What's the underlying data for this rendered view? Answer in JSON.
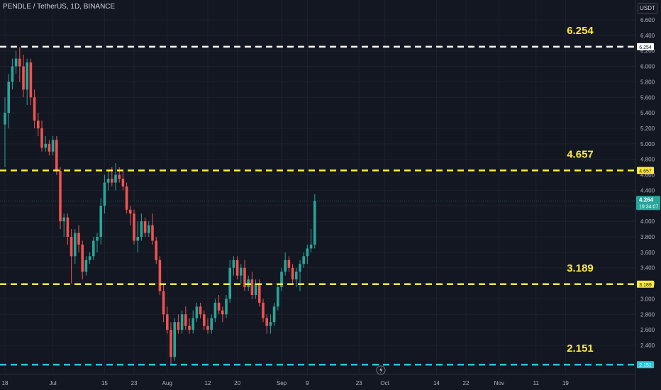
{
  "header": {
    "symbol_line": "PENDLE / TetherUS, 1D, BINANCE"
  },
  "price_axis": {
    "unit": "USDT",
    "current_price": "4.264",
    "countdown": "19:34:07"
  },
  "colors": {
    "background": "#131722",
    "up": "#26a69a",
    "down": "#ef5350",
    "white_level": "#ffffff",
    "yellow_level": "#ffeb3b",
    "cyan_level": "#26c6da"
  },
  "chart_data": {
    "type": "candlestick",
    "ylim": [
      2.2,
      6.7
    ],
    "yticks": [
      "2.400",
      "2.600",
      "2.800",
      "3.000",
      "3.200",
      "3.400",
      "3.600",
      "3.800",
      "4.000",
      "4.200",
      "4.400",
      "4.600",
      "4.800",
      "5.000",
      "5.200",
      "5.400",
      "5.600",
      "5.800",
      "6.000",
      "6.200",
      "6.400",
      "6.600"
    ],
    "xticks": [
      {
        "label": "18",
        "day": 0
      },
      {
        "label": "Jul",
        "day": 13
      },
      {
        "label": "15",
        "day": 27
      },
      {
        "label": "23",
        "day": 35
      },
      {
        "label": "Aug",
        "day": 44
      },
      {
        "label": "12",
        "day": 55
      },
      {
        "label": "20",
        "day": 63
      },
      {
        "label": "Sep",
        "day": 75
      },
      {
        "label": "9",
        "day": 82
      },
      {
        "label": "23",
        "day": 96
      },
      {
        "label": "Oct",
        "day": 103
      },
      {
        "label": "14",
        "day": 117
      },
      {
        "label": "22",
        "day": 125
      },
      {
        "label": "Nov",
        "day": 134
      },
      {
        "label": "11",
        "day": 144
      },
      {
        "label": "19",
        "day": 152
      }
    ],
    "levels": [
      {
        "price": 6.254,
        "label": "6.254",
        "color": "white_level"
      },
      {
        "price": 4.657,
        "label": "4.657",
        "color": "yellow_level"
      },
      {
        "price": 3.189,
        "label": "3.189",
        "color": "yellow_level"
      },
      {
        "price": 2.151,
        "label": "2.151",
        "color": "cyan_level"
      }
    ],
    "candles": [
      {
        "o": 5.25,
        "h": 5.6,
        "l": 4.7,
        "c": 5.4
      },
      {
        "o": 5.4,
        "h": 5.9,
        "l": 5.2,
        "c": 5.8
      },
      {
        "o": 5.8,
        "h": 6.1,
        "l": 5.7,
        "c": 6.0
      },
      {
        "o": 6.0,
        "h": 6.2,
        "l": 5.9,
        "c": 6.1
      },
      {
        "o": 6.1,
        "h": 6.25,
        "l": 5.8,
        "c": 6.0
      },
      {
        "o": 6.0,
        "h": 6.15,
        "l": 5.6,
        "c": 5.7
      },
      {
        "o": 5.7,
        "h": 6.1,
        "l": 5.5,
        "c": 6.05
      },
      {
        "o": 6.05,
        "h": 6.1,
        "l": 5.5,
        "c": 5.6
      },
      {
        "o": 5.6,
        "h": 5.7,
        "l": 5.2,
        "c": 5.3
      },
      {
        "o": 5.3,
        "h": 5.4,
        "l": 5.1,
        "c": 5.2
      },
      {
        "o": 5.2,
        "h": 5.3,
        "l": 4.9,
        "c": 4.95
      },
      {
        "o": 4.95,
        "h": 5.1,
        "l": 4.9,
        "c": 5.0
      },
      {
        "o": 5.0,
        "h": 5.05,
        "l": 4.85,
        "c": 4.9
      },
      {
        "o": 4.9,
        "h": 5.1,
        "l": 4.85,
        "c": 5.05
      },
      {
        "o": 5.05,
        "h": 5.1,
        "l": 4.6,
        "c": 4.65
      },
      {
        "o": 4.65,
        "h": 4.7,
        "l": 3.9,
        "c": 4.0
      },
      {
        "o": 4.0,
        "h": 4.1,
        "l": 3.8,
        "c": 4.05
      },
      {
        "o": 4.05,
        "h": 4.1,
        "l": 3.7,
        "c": 3.8
      },
      {
        "o": 3.8,
        "h": 3.9,
        "l": 3.2,
        "c": 3.55
      },
      {
        "o": 3.55,
        "h": 3.9,
        "l": 3.45,
        "c": 3.85
      },
      {
        "o": 3.85,
        "h": 3.95,
        "l": 3.6,
        "c": 3.7
      },
      {
        "o": 3.7,
        "h": 3.75,
        "l": 3.25,
        "c": 3.35
      },
      {
        "o": 3.35,
        "h": 3.55,
        "l": 3.3,
        "c": 3.5
      },
      {
        "o": 3.5,
        "h": 3.6,
        "l": 3.45,
        "c": 3.55
      },
      {
        "o": 3.55,
        "h": 3.8,
        "l": 3.5,
        "c": 3.75
      },
      {
        "o": 3.75,
        "h": 3.85,
        "l": 3.6,
        "c": 3.8
      },
      {
        "o": 3.8,
        "h": 4.3,
        "l": 3.7,
        "c": 4.2
      },
      {
        "o": 4.2,
        "h": 4.6,
        "l": 4.1,
        "c": 4.5
      },
      {
        "o": 4.5,
        "h": 4.65,
        "l": 4.4,
        "c": 4.55
      },
      {
        "o": 4.55,
        "h": 4.7,
        "l": 4.45,
        "c": 4.5
      },
      {
        "o": 4.5,
        "h": 4.75,
        "l": 4.4,
        "c": 4.6
      },
      {
        "o": 4.6,
        "h": 4.7,
        "l": 4.5,
        "c": 4.55
      },
      {
        "o": 4.55,
        "h": 4.65,
        "l": 4.4,
        "c": 4.45
      },
      {
        "o": 4.45,
        "h": 4.5,
        "l": 4.1,
        "c": 4.15
      },
      {
        "o": 4.15,
        "h": 4.2,
        "l": 3.95,
        "c": 4.1
      },
      {
        "o": 4.1,
        "h": 4.15,
        "l": 3.7,
        "c": 3.75
      },
      {
        "o": 3.75,
        "h": 4.0,
        "l": 3.6,
        "c": 3.8
      },
      {
        "o": 3.8,
        "h": 4.1,
        "l": 3.75,
        "c": 4.0
      },
      {
        "o": 4.0,
        "h": 4.05,
        "l": 3.8,
        "c": 3.85
      },
      {
        "o": 3.85,
        "h": 4.0,
        "l": 3.8,
        "c": 3.95
      },
      {
        "o": 3.95,
        "h": 4.1,
        "l": 3.7,
        "c": 3.75
      },
      {
        "o": 3.75,
        "h": 3.8,
        "l": 3.45,
        "c": 3.5
      },
      {
        "o": 3.5,
        "h": 3.55,
        "l": 3.05,
        "c": 3.1
      },
      {
        "o": 3.1,
        "h": 3.2,
        "l": 2.7,
        "c": 2.8
      },
      {
        "o": 2.8,
        "h": 2.9,
        "l": 2.55,
        "c": 2.6
      },
      {
        "o": 2.6,
        "h": 2.7,
        "l": 2.15,
        "c": 2.25
      },
      {
        "o": 2.25,
        "h": 2.75,
        "l": 2.2,
        "c": 2.7
      },
      {
        "o": 2.7,
        "h": 2.8,
        "l": 2.55,
        "c": 2.6
      },
      {
        "o": 2.6,
        "h": 2.85,
        "l": 2.55,
        "c": 2.8
      },
      {
        "o": 2.8,
        "h": 2.9,
        "l": 2.6,
        "c": 2.65
      },
      {
        "o": 2.65,
        "h": 2.75,
        "l": 2.55,
        "c": 2.6
      },
      {
        "o": 2.6,
        "h": 2.85,
        "l": 2.55,
        "c": 2.75
      },
      {
        "o": 2.75,
        "h": 2.95,
        "l": 2.7,
        "c": 2.9
      },
      {
        "o": 2.9,
        "h": 2.95,
        "l": 2.75,
        "c": 2.8
      },
      {
        "o": 2.8,
        "h": 2.85,
        "l": 2.6,
        "c": 2.65
      },
      {
        "o": 2.65,
        "h": 2.75,
        "l": 2.55,
        "c": 2.6
      },
      {
        "o": 2.6,
        "h": 2.8,
        "l": 2.55,
        "c": 2.75
      },
      {
        "o": 2.75,
        "h": 3.0,
        "l": 2.7,
        "c": 2.95
      },
      {
        "o": 2.95,
        "h": 3.05,
        "l": 2.8,
        "c": 2.85
      },
      {
        "o": 2.85,
        "h": 2.9,
        "l": 2.7,
        "c": 2.8
      },
      {
        "o": 2.8,
        "h": 3.05,
        "l": 2.75,
        "c": 3.0
      },
      {
        "o": 3.0,
        "h": 3.5,
        "l": 2.95,
        "c": 3.4
      },
      {
        "o": 3.4,
        "h": 3.55,
        "l": 3.3,
        "c": 3.5
      },
      {
        "o": 3.5,
        "h": 3.55,
        "l": 3.25,
        "c": 3.3
      },
      {
        "o": 3.3,
        "h": 3.45,
        "l": 3.2,
        "c": 3.4
      },
      {
        "o": 3.4,
        "h": 3.5,
        "l": 3.1,
        "c": 3.15
      },
      {
        "o": 3.15,
        "h": 3.3,
        "l": 3.1,
        "c": 3.25
      },
      {
        "o": 3.25,
        "h": 3.35,
        "l": 3.0,
        "c": 3.05
      },
      {
        "o": 3.05,
        "h": 3.25,
        "l": 3.0,
        "c": 3.2
      },
      {
        "o": 3.2,
        "h": 3.25,
        "l": 2.9,
        "c": 2.95
      },
      {
        "o": 2.95,
        "h": 3.0,
        "l": 2.7,
        "c": 2.75
      },
      {
        "o": 2.75,
        "h": 2.8,
        "l": 2.55,
        "c": 2.65
      },
      {
        "o": 2.65,
        "h": 2.8,
        "l": 2.55,
        "c": 2.7
      },
      {
        "o": 2.7,
        "h": 2.95,
        "l": 2.65,
        "c": 2.9
      },
      {
        "o": 2.9,
        "h": 3.2,
        "l": 2.85,
        "c": 3.15
      },
      {
        "o": 3.15,
        "h": 3.4,
        "l": 3.1,
        "c": 3.35
      },
      {
        "o": 3.35,
        "h": 3.6,
        "l": 3.3,
        "c": 3.5
      },
      {
        "o": 3.5,
        "h": 3.55,
        "l": 3.35,
        "c": 3.4
      },
      {
        "o": 3.4,
        "h": 3.45,
        "l": 3.2,
        "c": 3.25
      },
      {
        "o": 3.25,
        "h": 3.4,
        "l": 3.15,
        "c": 3.35
      },
      {
        "o": 3.35,
        "h": 3.5,
        "l": 3.1,
        "c": 3.45
      },
      {
        "o": 3.45,
        "h": 3.6,
        "l": 3.4,
        "c": 3.55
      },
      {
        "o": 3.55,
        "h": 3.7,
        "l": 3.45,
        "c": 3.65
      },
      {
        "o": 3.65,
        "h": 3.9,
        "l": 3.6,
        "c": 3.7
      },
      {
        "o": 3.7,
        "h": 4.35,
        "l": 3.65,
        "c": 4.264
      }
    ]
  }
}
